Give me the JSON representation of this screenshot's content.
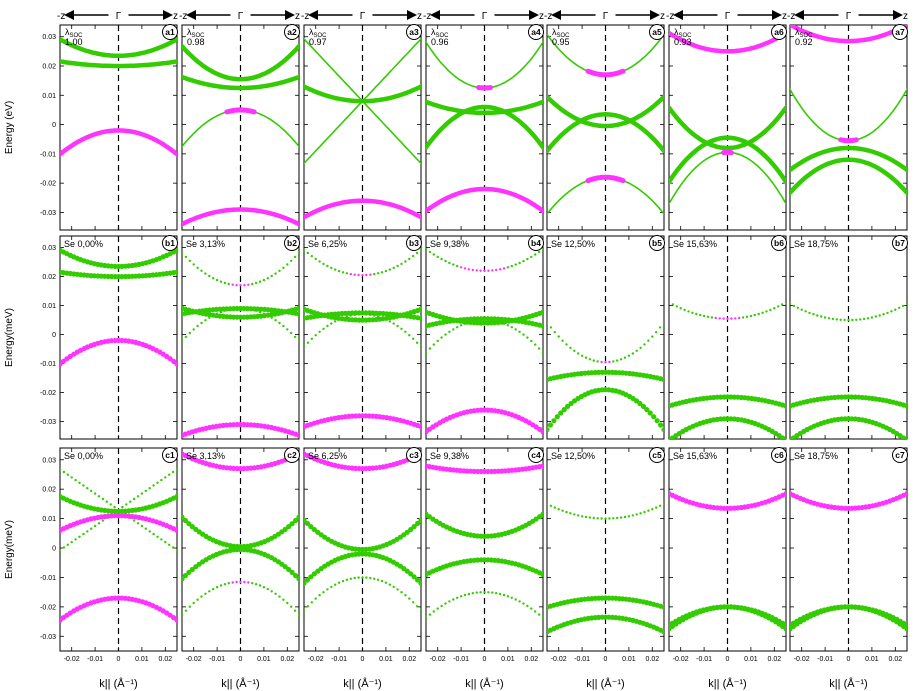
{
  "figure": {
    "direction_labels": {
      "left": "-z",
      "center": "Γ",
      "right": "z"
    },
    "row_ylabels": [
      "Energy (eV)",
      "Energy(meV)",
      "Energy(meV)"
    ],
    "xlabel": "k|| (Å⁻¹)",
    "xticks": [
      -0.02,
      -0.01,
      0,
      0.01,
      0.02
    ],
    "xtick_labels": [
      "-0.02",
      "-0.01",
      "0",
      "0.01",
      "0.02"
    ],
    "yticks": [
      0.03,
      0.02,
      0.01,
      0,
      -0.01,
      -0.02,
      -0.03
    ],
    "ytick_labels": [
      "0.03",
      "0.02",
      "0.01",
      "0",
      "-0.01",
      "-0.02",
      "-0.03"
    ],
    "colors": {
      "green": "#33cc00",
      "magenta": "#ff33ff"
    }
  },
  "chart_data": [
    {
      "id": "a1",
      "type": "line",
      "label": "λSOC",
      "value": "1.00",
      "xlim": [
        -0.025,
        0.025
      ],
      "ylim": [
        -0.036,
        0.034
      ],
      "bands": [
        {
          "e0": 0.0235,
          "curv": 9,
          "color": "green",
          "thick": true
        },
        {
          "e0": 0.02,
          "curv": 2.5,
          "color": "green",
          "thick": true
        },
        {
          "e0": -0.002,
          "curv": -13,
          "color": "magenta",
          "thick": true
        }
      ]
    },
    {
      "id": "a2",
      "type": "line",
      "label": "λSOC",
      "value": "0.98",
      "xlim": [
        -0.025,
        0.025
      ],
      "ylim": [
        -0.036,
        0.034
      ],
      "bands": [
        {
          "e0": 0.0155,
          "curv": 18,
          "color": "green",
          "thick": true
        },
        {
          "e0": 0.0125,
          "curv": 6,
          "color": "green",
          "thick": true
        },
        {
          "e0": 0.005,
          "curv": -20,
          "color": "green",
          "thick": false,
          "hl": 0.006
        },
        {
          "e0": -0.029,
          "curv": -8,
          "color": "magenta",
          "thick": true
        }
      ]
    },
    {
      "id": "a3",
      "type": "line",
      "label": "λSOC",
      "value": "0.97",
      "xlim": [
        -0.025,
        0.025
      ],
      "ylim": [
        -0.036,
        0.034
      ],
      "bands": [
        {
          "e0": 0.008,
          "slope": 0.85,
          "color": "green",
          "thick": false
        },
        {
          "e0": 0.008,
          "slope": -0.85,
          "color": "green",
          "thick": false
        },
        {
          "e0": 0.008,
          "curv": 8,
          "color": "green",
          "thick": true
        },
        {
          "e0": -0.026,
          "curv": -9,
          "color": "magenta",
          "thick": true
        }
      ]
    },
    {
      "id": "a4",
      "type": "line",
      "label": "λSOC",
      "value": "0.96",
      "xlim": [
        -0.025,
        0.025
      ],
      "ylim": [
        -0.036,
        0.034
      ],
      "bands": [
        {
          "e0": 0.0125,
          "curv": 25,
          "color": "green",
          "thick": false,
          "hl": 0.003
        },
        {
          "e0": 0.006,
          "curv": -22,
          "color": "green",
          "thick": true
        },
        {
          "e0": 0.004,
          "curv": 6,
          "color": "green",
          "thick": true
        },
        {
          "e0": -0.022,
          "curv": -12,
          "color": "magenta",
          "thick": true
        }
      ]
    },
    {
      "id": "a5",
      "type": "line",
      "label": "λSOC",
      "value": "0.95",
      "xlim": [
        -0.025,
        0.025
      ],
      "ylim": [
        -0.036,
        0.034
      ],
      "bands": [
        {
          "e0": 0.017,
          "curv": 22,
          "color": "green",
          "thick": false,
          "hl": 0.008
        },
        {
          "e0": 0.0035,
          "curv": -20,
          "color": "green",
          "thick": true
        },
        {
          "e0": -0.0005,
          "curv": 16,
          "color": "green",
          "thick": true
        },
        {
          "e0": -0.018,
          "curv": -20,
          "color": "green",
          "thick": false,
          "hl": 0.008
        }
      ]
    },
    {
      "id": "a6",
      "type": "line",
      "label": "λSOC",
      "value": "0.93",
      "xlim": [
        -0.025,
        0.025
      ],
      "ylim": [
        -0.036,
        0.034
      ],
      "bands": [
        {
          "e0": 0.025,
          "curv": 10,
          "color": "magenta",
          "thick": true
        },
        {
          "e0": -0.0045,
          "curv": -24,
          "color": "green",
          "thick": true
        },
        {
          "e0": -0.008,
          "curv": 22,
          "color": "green",
          "thick": true
        },
        {
          "e0": -0.0095,
          "curv": -28,
          "color": "green",
          "thick": false,
          "hl": 0.002
        }
      ]
    },
    {
      "id": "a7",
      "type": "line",
      "label": "λSOC",
      "value": "0.92",
      "xlim": [
        -0.025,
        0.025
      ],
      "ylim": [
        -0.036,
        0.034
      ],
      "bands": [
        {
          "e0": 0.0285,
          "curv": 9,
          "color": "magenta",
          "thick": true
        },
        {
          "e0": -0.0055,
          "curv": 28,
          "color": "green",
          "thick": false,
          "hl": 0.004
        },
        {
          "e0": -0.008,
          "curv": -12,
          "color": "green",
          "thick": true
        },
        {
          "e0": -0.012,
          "curv": -18,
          "color": "green",
          "thick": true
        }
      ]
    },
    {
      "id": "b1",
      "type": "scatter",
      "label": "Se 0,00%",
      "xlim": [
        -0.025,
        0.025
      ],
      "ylim": [
        -0.036,
        0.034
      ],
      "bands": [
        {
          "e0": 0.0235,
          "curv": 9,
          "color": "green",
          "thick": true
        },
        {
          "e0": 0.02,
          "curv": 2.5,
          "color": "green",
          "thick": true
        },
        {
          "e0": -0.002,
          "curv": -13,
          "color": "magenta",
          "thick": true
        }
      ]
    },
    {
      "id": "b2",
      "type": "scatter",
      "label": "Se 3,13%",
      "xlim": [
        -0.025,
        0.025
      ],
      "ylim": [
        -0.036,
        0.034
      ],
      "bands": [
        {
          "e0": 0.017,
          "curv": 18,
          "color": "green",
          "thick": false,
          "hl": 0.004
        },
        {
          "e0": 0.009,
          "curv": -3,
          "color": "green",
          "thick": true
        },
        {
          "e0": 0.006,
          "curv": 5,
          "color": "green",
          "thick": true
        },
        {
          "e0": 0.009,
          "curv": -18,
          "color": "green",
          "thick": false
        },
        {
          "e0": -0.031,
          "curv": -6,
          "color": "magenta",
          "thick": true
        }
      ]
    },
    {
      "id": "b3",
      "type": "scatter",
      "label": "Se 6,25%",
      "xlim": [
        -0.025,
        0.025
      ],
      "ylim": [
        -0.036,
        0.034
      ],
      "bands": [
        {
          "e0": 0.0205,
          "curv": 14,
          "color": "green",
          "thick": false,
          "hl": 0.005
        },
        {
          "e0": 0.0075,
          "curv": -3,
          "color": "green",
          "thick": true
        },
        {
          "e0": 0.005,
          "curv": 6,
          "color": "green",
          "thick": true
        },
        {
          "e0": 0.007,
          "curv": -18,
          "color": "green",
          "thick": false
        },
        {
          "e0": -0.028,
          "curv": -6,
          "color": "magenta",
          "thick": true
        }
      ]
    },
    {
      "id": "b4",
      "type": "scatter",
      "label": "Se 9,38%",
      "xlim": [
        -0.025,
        0.025
      ],
      "ylim": [
        -0.036,
        0.034
      ],
      "bands": [
        {
          "e0": 0.022,
          "curv": 12,
          "color": "green",
          "thick": false,
          "hl": 0.01
        },
        {
          "e0": 0.0055,
          "curv": -4,
          "color": "green",
          "thick": true
        },
        {
          "e0": 0.004,
          "curv": 6,
          "color": "green",
          "thick": true
        },
        {
          "e0": 0.005,
          "curv": -18,
          "color": "green",
          "thick": false
        },
        {
          "e0": -0.026,
          "curv": -12,
          "color": "magenta",
          "thick": true
        }
      ]
    },
    {
      "id": "b5",
      "type": "scatter",
      "label": "Se 12,50%",
      "xlim": [
        -0.025,
        0.025
      ],
      "ylim": [
        -0.036,
        0.034
      ],
      "bands": [
        {
          "e0": -0.0095,
          "curv": 22,
          "color": "green",
          "thick": false,
          "hl": 0.003
        },
        {
          "e0": -0.013,
          "curv": -4,
          "color": "green",
          "thick": true
        },
        {
          "e0": -0.019,
          "curv": -22,
          "color": "green",
          "thick": true
        }
      ]
    },
    {
      "id": "b6",
      "type": "scatter",
      "label": "Se 15,63%",
      "xlim": [
        -0.025,
        0.025
      ],
      "ylim": [
        -0.036,
        0.034
      ],
      "bands": [
        {
          "e0": 0.0055,
          "curv": 9,
          "color": "green",
          "thick": false,
          "hl": 0.006
        },
        {
          "e0": -0.0215,
          "curv": -5,
          "color": "green",
          "thick": true
        },
        {
          "e0": -0.029,
          "curv": -12,
          "color": "green",
          "thick": true
        }
      ]
    },
    {
      "id": "b7",
      "type": "scatter",
      "label": "Se 18,75%",
      "xlim": [
        -0.025,
        0.025
      ],
      "ylim": [
        -0.036,
        0.034
      ],
      "bands": [
        {
          "e0": 0.005,
          "curv": 9,
          "color": "green",
          "thick": false
        },
        {
          "e0": -0.0215,
          "curv": -5,
          "color": "green",
          "thick": true
        },
        {
          "e0": -0.029,
          "curv": -12,
          "color": "green",
          "thick": true
        }
      ]
    },
    {
      "id": "c1",
      "type": "scatter",
      "label": "Se 0,00%",
      "xlim": [
        -0.025,
        0.025
      ],
      "ylim": [
        -0.035,
        0.034
      ],
      "bands": [
        {
          "e0": 0.013,
          "slope": 0.55,
          "color": "green",
          "thick": false
        },
        {
          "e0": 0.013,
          "slope": -0.55,
          "color": "green",
          "thick": false
        },
        {
          "e0": 0.0125,
          "curv": 8,
          "color": "green",
          "thick": true
        },
        {
          "e0": 0.011,
          "curv": -8,
          "color": "magenta",
          "thick": true,
          "hlw": 0.0015
        },
        {
          "e0": -0.017,
          "curv": -12,
          "color": "magenta",
          "thick": true,
          "hl": 0.02
        }
      ]
    },
    {
      "id": "c2",
      "type": "scatter",
      "label": "Se 3,13%",
      "xlim": [
        -0.025,
        0.025
      ],
      "ylim": [
        -0.035,
        0.034
      ],
      "bands": [
        {
          "e0": 0.027,
          "curv": 8,
          "color": "magenta",
          "thick": true
        },
        {
          "e0": 0.0005,
          "curv": 16,
          "color": "green",
          "thick": true
        },
        {
          "e0": -0.0005,
          "curv": -16,
          "color": "green",
          "thick": true
        },
        {
          "e0": -0.0115,
          "curv": -18,
          "color": "green",
          "thick": false,
          "hl": 0.004
        }
      ]
    },
    {
      "id": "c3",
      "type": "scatter",
      "label": "Se 6,25%",
      "xlim": [
        -0.025,
        0.025
      ],
      "ylim": [
        -0.035,
        0.034
      ],
      "bands": [
        {
          "e0": 0.027,
          "curv": 8,
          "color": "magenta",
          "thick": true
        },
        {
          "e0": -0.0005,
          "curv": 16,
          "color": "green",
          "thick": true
        },
        {
          "e0": -0.002,
          "curv": -16,
          "color": "green",
          "thick": true
        },
        {
          "e0": -0.01,
          "curv": -18,
          "color": "green",
          "thick": false
        }
      ]
    },
    {
      "id": "c4",
      "type": "scatter",
      "label": "Se 9,38%",
      "xlim": [
        -0.025,
        0.025
      ],
      "ylim": [
        -0.035,
        0.034
      ],
      "bands": [
        {
          "e0": 0.026,
          "curv": 3,
          "color": "magenta",
          "thick": true
        },
        {
          "e0": 0.004,
          "curv": 12,
          "color": "green",
          "thick": true
        },
        {
          "e0": -0.004,
          "curv": -8,
          "color": "green",
          "thick": true
        },
        {
          "e0": -0.015,
          "curv": -14,
          "color": "green",
          "thick": false
        }
      ]
    },
    {
      "id": "c5",
      "type": "scatter",
      "label": "Se 12,50%",
      "xlim": [
        -0.025,
        0.025
      ],
      "ylim": [
        -0.035,
        0.034
      ],
      "bands": [
        {
          "e0": 0.01,
          "curv": 8,
          "color": "green",
          "thick": false
        },
        {
          "e0": -0.017,
          "curv": -5,
          "color": "green",
          "thick": true
        },
        {
          "e0": -0.0235,
          "curv": -8,
          "color": "green",
          "thick": true
        }
      ]
    },
    {
      "id": "c6",
      "type": "scatter",
      "label": "Se 15,63%",
      "xlim": [
        -0.025,
        0.025
      ],
      "ylim": [
        -0.035,
        0.034
      ],
      "bands": [
        {
          "e0": 0.0135,
          "curv": 8,
          "color": "magenta",
          "thick": true
        },
        {
          "e0": -0.02,
          "curv": -10,
          "color": "green",
          "thick": true
        },
        {
          "e0": -0.02,
          "curv": -12,
          "color": "green",
          "thick": true,
          "split": 0.4
        }
      ]
    },
    {
      "id": "c7",
      "type": "scatter",
      "label": "Se 18,75%",
      "xlim": [
        -0.025,
        0.025
      ],
      "ylim": [
        -0.035,
        0.034
      ],
      "bands": [
        {
          "e0": 0.0135,
          "curv": 8,
          "color": "magenta",
          "thick": true
        },
        {
          "e0": -0.02,
          "curv": -10,
          "color": "green",
          "thick": true
        },
        {
          "e0": -0.02,
          "curv": -12,
          "color": "green",
          "thick": true,
          "split": 0.4
        }
      ]
    }
  ]
}
